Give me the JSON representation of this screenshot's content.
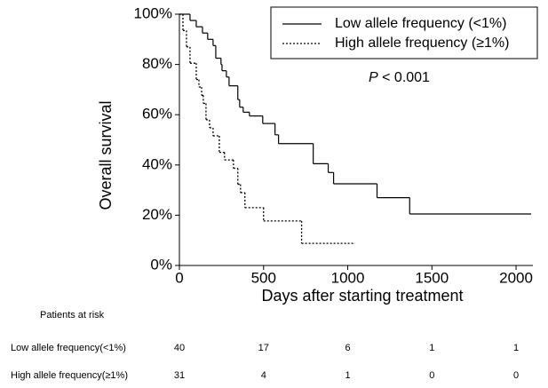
{
  "chart_data": {
    "type": "step",
    "x_label": "Days after starting treatment",
    "y_label": "Overall survival",
    "annotation": {
      "italic": "P",
      "text": "< 0.001"
    },
    "xlim": [
      0,
      2100
    ],
    "ylim": [
      0,
      100
    ],
    "xticks": [
      0,
      500,
      1000,
      1500,
      2000
    ],
    "yticks": [
      {
        "value": 0,
        "label": "0%"
      },
      {
        "value": 20,
        "label": "20%"
      },
      {
        "value": 40,
        "label": "40%"
      },
      {
        "value": 60,
        "label": "60%"
      },
      {
        "value": 80,
        "label": "80%"
      },
      {
        "value": 100,
        "label": "100%"
      }
    ],
    "series": [
      {
        "name": "Low allele frequency (<1%)",
        "color": "#000000",
        "dash": false,
        "x": [
          0,
          63,
          100,
          137,
          168,
          200,
          216,
          247,
          253,
          279,
          295,
          347,
          358,
          379,
          416,
          495,
          568,
          589,
          795,
          884,
          916,
          1174,
          1368,
          2090
        ],
        "values": [
          100,
          97.5,
          95,
          92.5,
          90,
          87.5,
          82.5,
          80,
          77.5,
          75,
          71.5,
          66,
          63,
          61,
          59.5,
          56.5,
          52,
          48.5,
          40.5,
          37,
          32.5,
          27,
          20.5,
          20.5
        ]
      },
      {
        "name": "High allele frequency (≥1%)",
        "color": "#000000",
        "dash": true,
        "x": [
          0,
          21,
          42,
          63,
          100,
          116,
          132,
          142,
          158,
          179,
          200,
          237,
          268,
          321,
          347,
          363,
          389,
          500,
          726,
          1042
        ],
        "values": [
          100,
          93.5,
          87,
          80.5,
          74,
          71,
          67.7,
          64.5,
          58,
          54.8,
          51.6,
          45,
          42,
          38.7,
          32.3,
          29,
          23,
          17.7,
          8.8,
          8.8
        ]
      }
    ],
    "risk_table": {
      "title": "Patients at risk",
      "rows": [
        {
          "name": "Low allele frequency(<1%)",
          "values": [
            40,
            17,
            6,
            1,
            1
          ]
        },
        {
          "name": "High allele frequency(≥1%)",
          "values": [
            31,
            4,
            1,
            0,
            0
          ]
        }
      ]
    }
  }
}
